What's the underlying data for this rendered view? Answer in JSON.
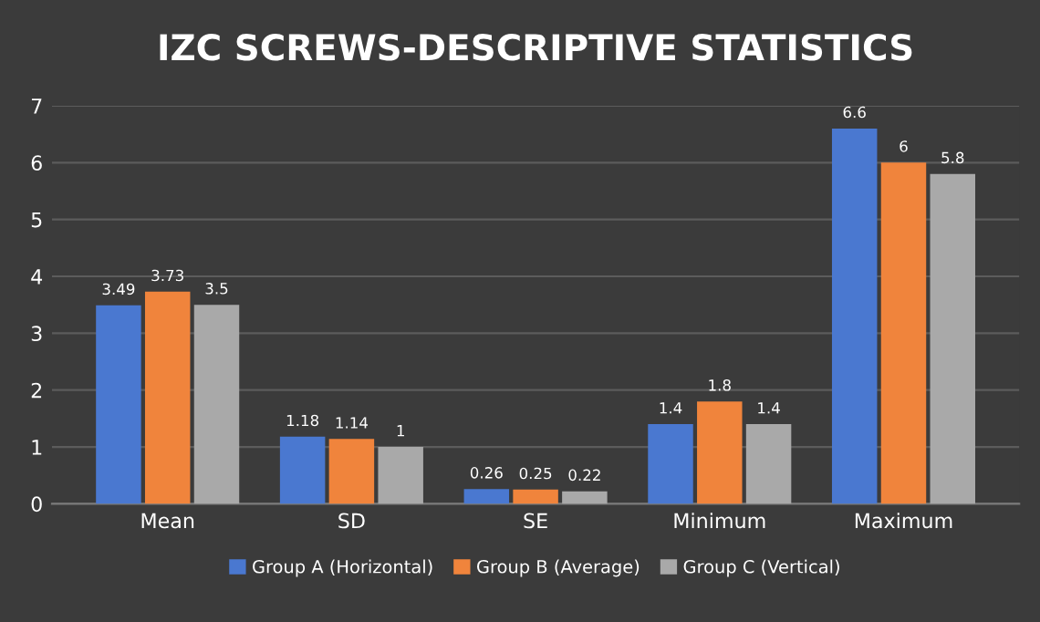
{
  "chart_data": {
    "type": "bar",
    "title": "IZC SCREWS-DESCRIPTIVE STATISTICS",
    "categories": [
      "Mean",
      "SD",
      "SE",
      "Minimum",
      "Maximum"
    ],
    "series": [
      {
        "name": "Group A (Horizontal)",
        "color": "#4a78d0",
        "values": [
          3.49,
          1.18,
          0.26,
          1.4,
          6.6
        ]
      },
      {
        "name": "Group B (Average)",
        "color": "#f0843c",
        "values": [
          3.73,
          1.14,
          0.25,
          1.8,
          6
        ]
      },
      {
        "name": "Group C (Vertical)",
        "color": "#a9a9a9",
        "values": [
          3.5,
          1,
          0.22,
          1.4,
          5.8
        ]
      }
    ],
    "ylim": [
      0,
      7
    ],
    "yticks": [
      0,
      1,
      2,
      3,
      4,
      5,
      6,
      7
    ],
    "grid": "y",
    "legend": "bottom",
    "data_labels": true
  }
}
